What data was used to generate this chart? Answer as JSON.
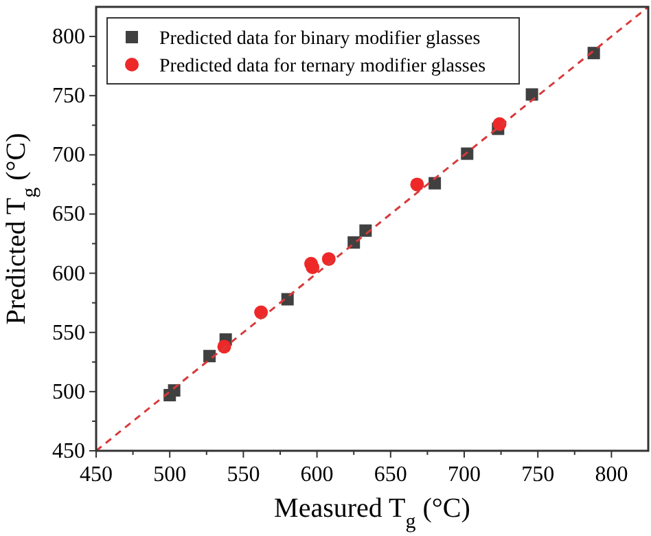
{
  "chart_data": {
    "type": "scatter",
    "xlabel": "Measured T$_{g}$ (°C)",
    "ylabel": "Predicted T$_{g}$ (°C)",
    "xlim": [
      450,
      825
    ],
    "ylim": [
      450,
      825
    ],
    "xticks": [
      450,
      500,
      550,
      600,
      650,
      700,
      750,
      800
    ],
    "yticks": [
      450,
      500,
      550,
      600,
      650,
      700,
      750,
      800
    ],
    "grid": false,
    "legend": "top left",
    "series": [
      {
        "name": "Predicted data for binary modifier glasses",
        "color": "#404040",
        "marker": "square",
        "x": [
          500,
          503,
          527,
          538,
          580,
          625,
          633,
          680,
          702,
          723,
          746,
          788
        ],
        "values": [
          497,
          501,
          530,
          544,
          578,
          626,
          636,
          676,
          701,
          722,
          751,
          786
        ]
      },
      {
        "name": "Predicted data for ternary modifier glasses",
        "color": "#ee2828",
        "marker": "circle",
        "x": [
          537,
          562,
          596,
          597,
          608,
          668,
          724
        ],
        "values": [
          538,
          567,
          608,
          605,
          612,
          675,
          726
        ]
      },
      {
        "type": "line",
        "color": "#d83a3a",
        "marker": "none",
        "line_style": "dashed",
        "x": [
          450,
          825
        ],
        "values": [
          450,
          825
        ]
      }
    ]
  }
}
